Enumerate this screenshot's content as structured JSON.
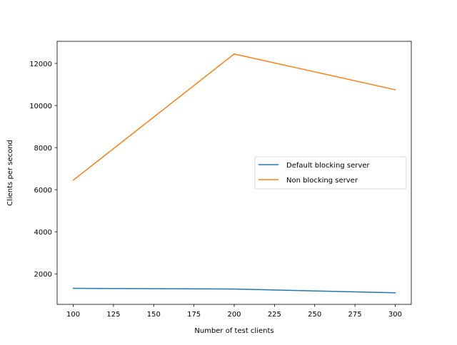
{
  "chart_data": {
    "type": "line",
    "title": "",
    "xlabel": "Number of test clients",
    "ylabel": "Clients per second",
    "x": [
      100,
      200,
      300
    ],
    "xlim": [
      90,
      310
    ],
    "ylim": [
      550,
      13050
    ],
    "xticks": [
      100,
      125,
      150,
      175,
      200,
      225,
      250,
      275,
      300
    ],
    "yticks": [
      2000,
      4000,
      6000,
      8000,
      10000,
      12000
    ],
    "grid": false,
    "legend_position": "center-right",
    "series": [
      {
        "name": "Default blocking server",
        "values": [
          1310,
          1280,
          1100
        ],
        "color": "#1f77b4"
      },
      {
        "name": "Non blocking server",
        "values": [
          6450,
          12450,
          10750
        ],
        "color": "#ff7f0e"
      }
    ]
  }
}
